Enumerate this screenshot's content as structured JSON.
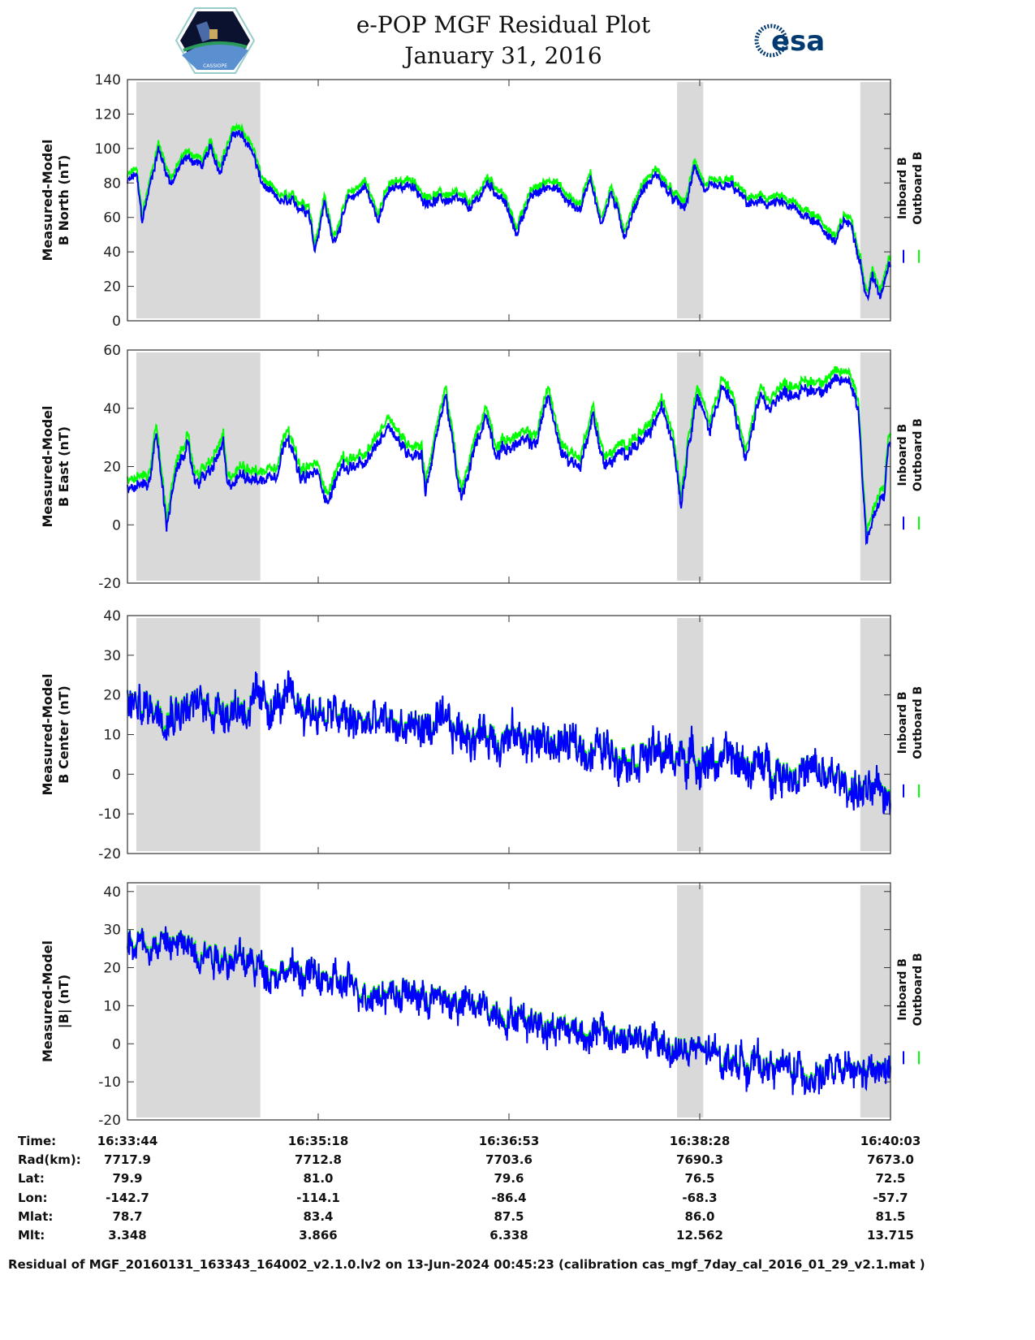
{
  "header": {
    "title": "e-POP MGF Residual Plot",
    "date": "January 31, 2016",
    "left_logo_text": "CASSIOPE",
    "right_logo_text": "esa"
  },
  "colors": {
    "inboard": "#0000ff",
    "outboard": "#00ff00",
    "shade": "#d9d9d9"
  },
  "chart_data": [
    {
      "type": "line",
      "ylabel": [
        "Measured-Model",
        "B North (nT)"
      ],
      "ylim": [
        0,
        140
      ],
      "yticks": [
        0,
        20,
        40,
        60,
        80,
        100,
        120,
        140
      ],
      "legend": [
        "Inboard B",
        "Outboard B"
      ],
      "outboard_offset": 3.5,
      "noise": 4,
      "inboard_t_s": [
        0,
        4.4,
        7.3,
        15.3,
        21.4,
        29.4,
        37.5,
        41.5,
        45.6,
        53.6,
        61.7,
        66.5,
        73.8,
        89.9,
        93.1,
        98,
        102,
        110,
        118,
        124,
        130,
        140,
        146,
        162,
        171,
        179,
        187,
        193,
        199,
        211,
        219,
        225,
        230,
        235,
        240,
        247,
        255,
        263,
        271,
        277,
        282,
        287,
        300,
        308,
        324,
        336,
        340,
        352,
        356,
        360,
        364,
        367,
        370,
        374,
        378
      ],
      "inboard_values": [
        80,
        85,
        58,
        100,
        80,
        95,
        90,
        100,
        88,
        110,
        100,
        80,
        70,
        65,
        42,
        70,
        45,
        70,
        78,
        60,
        75,
        80,
        70,
        70,
        65,
        80,
        70,
        50,
        70,
        80,
        68,
        65,
        85,
        55,
        75,
        50,
        75,
        85,
        70,
        65,
        90,
        75,
        78,
        68,
        68,
        62,
        60,
        45,
        58,
        55,
        35,
        12,
        25,
        15,
        35
      ]
    },
    {
      "type": "line",
      "ylabel": [
        "Measured-Model",
        "B East (nT)"
      ],
      "ylim": [
        -20,
        60
      ],
      "yticks": [
        -20,
        0,
        20,
        40,
        60
      ],
      "legend": [
        "Inboard B",
        "Outboard B"
      ],
      "outboard_offset": 3,
      "noise": 3,
      "inboard_t_s": [
        0,
        11.3,
        14.1,
        19.4,
        23.4,
        29.4,
        33.5,
        41.5,
        47.6,
        49.6,
        57.6,
        65.7,
        73.8,
        79.8,
        85.9,
        93.9,
        99.9,
        106,
        118,
        130,
        138,
        146,
        148,
        158,
        164,
        166,
        172,
        178,
        183,
        195,
        203,
        209,
        215,
        225,
        231,
        237,
        247,
        259,
        265,
        271,
        275,
        279,
        283,
        289,
        295,
        301,
        307,
        315,
        319,
        323,
        339,
        359,
        363,
        367,
        372,
        376,
        378
      ],
      "inboard_values": [
        12,
        15,
        33,
        0,
        15,
        28,
        15,
        18,
        28,
        12,
        18,
        15,
        18,
        32,
        15,
        18,
        8,
        20,
        20,
        35,
        25,
        25,
        12,
        45,
        15,
        8,
        25,
        38,
        25,
        28,
        28,
        45,
        25,
        20,
        38,
        20,
        25,
        30,
        40,
        30,
        8,
        30,
        45,
        32,
        48,
        40,
        22,
        45,
        38,
        45,
        46,
        50,
        40,
        -5,
        5,
        10,
        28
      ]
    },
    {
      "type": "line",
      "ylabel": [
        "Measured-Model",
        "B Center (nT)"
      ],
      "ylim": [
        -20,
        40
      ],
      "yticks": [
        -20,
        -10,
        0,
        10,
        20,
        30,
        40
      ],
      "legend": [
        "Inboard B",
        "Outboard B"
      ],
      "outboard_offset": 0.5,
      "noise": 7,
      "inboard_t_s": [
        0,
        66,
        82,
        98,
        110,
        138,
        179,
        219,
        259,
        299,
        340,
        360,
        370,
        378
      ],
      "inboard_values": [
        17,
        17,
        18,
        15,
        13,
        12,
        10,
        7,
        5,
        3,
        0,
        -3,
        -6,
        -5
      ]
    },
    {
      "type": "line",
      "ylabel": [
        "Measured-Model",
        "|B| (nT)"
      ],
      "ylim": [
        -20,
        42.3
      ],
      "yticks": [
        -20,
        -10,
        0,
        10,
        20,
        30,
        40
      ],
      "legend": [
        "Inboard B",
        "Outboard B"
      ],
      "outboard_offset": 0.5,
      "noise": 6,
      "inboard_t_s": [
        0,
        37.5,
        66,
        90,
        106,
        138,
        179,
        219,
        259,
        299,
        340,
        378
      ],
      "inboard_values": [
        27,
        25,
        20,
        18,
        15,
        13,
        9,
        4,
        0,
        -4,
        -8,
        -8
      ]
    }
  ],
  "shaded_intervals_s": [
    [
      4.4,
      66
    ],
    [
      273,
      286
    ],
    [
      364,
      379
    ]
  ],
  "x_axis": {
    "range_s": [
      0,
      379
    ]
  },
  "ephemeris": {
    "labels": [
      "Time:",
      "Rad(km):",
      "Lat:",
      "Lon:",
      "Mlat:",
      "Mlt:"
    ],
    "columns": [
      {
        "t_s": 0,
        "values": [
          "16:33:44",
          "7717.9",
          "79.9",
          "-142.7",
          "78.7",
          "3.348"
        ]
      },
      {
        "t_s": 94.75,
        "values": [
          "16:35:18",
          "7712.8",
          "81.0",
          "-114.1",
          "83.4",
          "3.866"
        ]
      },
      {
        "t_s": 189.5,
        "values": [
          "16:36:53",
          "7703.6",
          "79.6",
          "-86.4",
          "87.5",
          "6.338"
        ]
      },
      {
        "t_s": 284.25,
        "values": [
          "16:38:28",
          "7690.3",
          "76.5",
          "-68.3",
          "86.0",
          "12.562"
        ]
      },
      {
        "t_s": 379,
        "values": [
          "16:40:03",
          "7673.0",
          "72.5",
          "-57.7",
          "81.5",
          "13.715"
        ]
      }
    ]
  },
  "footer": "Residual of MGF_20160131_163343_164002_v2.1.0.lv2 on 13-Jun-2024 00:45:23 (calibration cas_mgf_7day_cal_2016_01_29_v2.1.mat )"
}
